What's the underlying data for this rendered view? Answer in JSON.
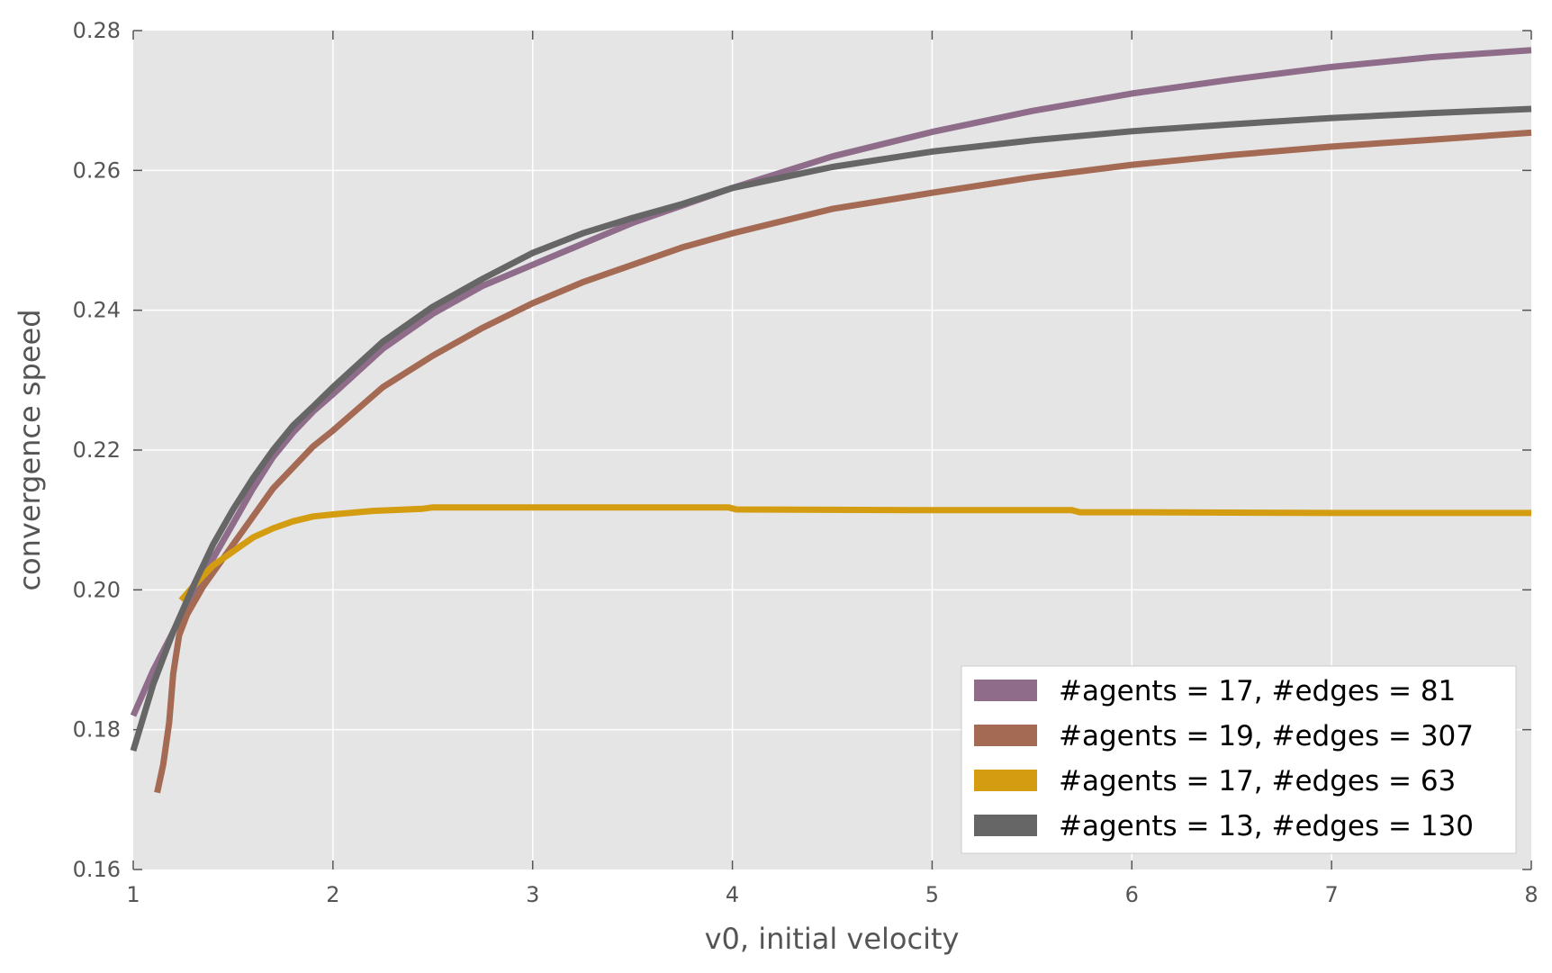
{
  "chart_data": {
    "type": "line",
    "xlabel": "v0, initial velocity",
    "ylabel": "convergence speed",
    "xlim": [
      1,
      8
    ],
    "ylim": [
      0.16,
      0.28
    ],
    "xticks": [
      1,
      2,
      3,
      4,
      5,
      6,
      7,
      8
    ],
    "yticks": [
      "0.16",
      "0.18",
      "0.20",
      "0.22",
      "0.24",
      "0.26",
      "0.28"
    ],
    "grid": true,
    "legend_position": "bottom-right",
    "series": [
      {
        "name": "#agents = 17, #edges = 81",
        "color": "#8e6c8a",
        "x": [
          1.0,
          1.1,
          1.2,
          1.3,
          1.4,
          1.5,
          1.6,
          1.7,
          1.8,
          1.9,
          2.0,
          2.25,
          2.5,
          2.75,
          3.0,
          3.25,
          3.5,
          3.75,
          4.0,
          4.5,
          5.0,
          5.5,
          6.0,
          6.5,
          7.0,
          7.5,
          8.0
        ],
        "y": [
          0.182,
          0.1885,
          0.194,
          0.199,
          0.2045,
          0.2095,
          0.2145,
          0.219,
          0.2225,
          0.2255,
          0.228,
          0.2345,
          0.2395,
          0.2435,
          0.2465,
          0.2495,
          0.2525,
          0.255,
          0.2575,
          0.262,
          0.2655,
          0.2685,
          0.271,
          0.273,
          0.2748,
          0.2762,
          0.2772
        ]
      },
      {
        "name": "#agents = 19, #edges = 307",
        "color": "#a56a53",
        "x": [
          1.12,
          1.15,
          1.18,
          1.2,
          1.23,
          1.27,
          1.35,
          1.5,
          1.7,
          1.9,
          2.0,
          2.25,
          2.5,
          2.75,
          3.0,
          3.25,
          3.5,
          3.75,
          4.0,
          4.5,
          5.0,
          5.5,
          6.0,
          6.5,
          7.0,
          7.5,
          8.0
        ],
        "y": [
          0.171,
          0.175,
          0.181,
          0.188,
          0.1935,
          0.1965,
          0.2005,
          0.2065,
          0.2145,
          0.2205,
          0.2228,
          0.229,
          0.2335,
          0.2375,
          0.241,
          0.244,
          0.2465,
          0.249,
          0.251,
          0.2545,
          0.2568,
          0.259,
          0.2608,
          0.2622,
          0.2634,
          0.2644,
          0.2654
        ]
      },
      {
        "name": "#agents = 17, #edges = 63",
        "color": "#d49d11",
        "x": [
          1.24,
          1.3,
          1.4,
          1.5,
          1.6,
          1.7,
          1.8,
          1.9,
          2.0,
          2.2,
          2.45,
          2.5,
          3.0,
          3.5,
          3.98,
          4.02,
          5.0,
          5.7,
          5.74,
          6.0,
          7.0,
          8.0
        ],
        "y": [
          0.1985,
          0.2005,
          0.2035,
          0.2055,
          0.2075,
          0.2088,
          0.2098,
          0.2105,
          0.2108,
          0.2113,
          0.2116,
          0.2118,
          0.2118,
          0.2118,
          0.2118,
          0.2115,
          0.2114,
          0.2114,
          0.2111,
          0.2111,
          0.211,
          0.211
        ]
      },
      {
        "name": "#agents = 13, #edges = 130",
        "color": "#666666",
        "x": [
          1.0,
          1.1,
          1.2,
          1.3,
          1.4,
          1.5,
          1.6,
          1.7,
          1.8,
          1.9,
          2.0,
          2.25,
          2.5,
          2.75,
          3.0,
          3.25,
          3.5,
          3.75,
          4.0,
          4.5,
          5.0,
          5.5,
          6.0,
          6.5,
          7.0,
          7.5,
          8.0
        ],
        "y": [
          0.177,
          0.1865,
          0.194,
          0.2005,
          0.2065,
          0.2115,
          0.216,
          0.22,
          0.2235,
          0.2262,
          0.229,
          0.2355,
          0.2405,
          0.2445,
          0.2482,
          0.251,
          0.2532,
          0.2552,
          0.2575,
          0.2605,
          0.2627,
          0.2643,
          0.2656,
          0.2666,
          0.2675,
          0.2682,
          0.2688
        ]
      }
    ]
  }
}
